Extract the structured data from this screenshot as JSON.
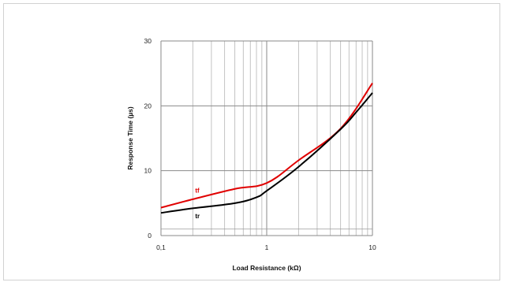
{
  "chart_data": {
    "type": "line",
    "xlabel": "Load Resistance (kΩ)",
    "ylabel": "Response Time (µs)",
    "xscale": "log",
    "xlim": [
      0.1,
      10
    ],
    "ylim": [
      0,
      30
    ],
    "grid": true,
    "x_tick_labels": [
      "0,1",
      "1",
      "10"
    ],
    "y_tick_labels": [
      "0",
      "10",
      "20",
      "30"
    ],
    "series": [
      {
        "name": "tf",
        "color": "#e00000",
        "x": [
          0.1,
          0.2,
          0.5,
          1.0,
          2.0,
          5.0,
          10.0
        ],
        "y": [
          4.3,
          5.6,
          7.2,
          8.1,
          11.6,
          16.5,
          23.5
        ]
      },
      {
        "name": "tr",
        "color": "#000000",
        "x": [
          0.1,
          0.2,
          0.5,
          0.8,
          1.0,
          2.0,
          5.0,
          7.0,
          10.0
        ],
        "y": [
          3.5,
          4.2,
          5.0,
          5.9,
          6.9,
          10.6,
          16.4,
          19.0,
          22.0
        ]
      }
    ]
  }
}
